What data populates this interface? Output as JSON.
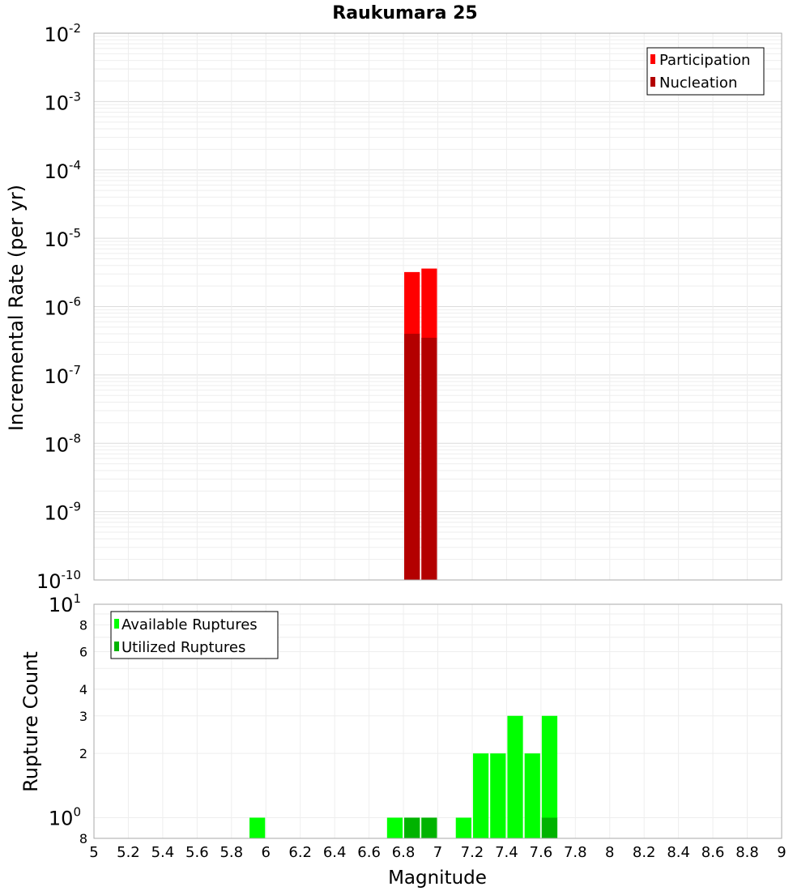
{
  "chart_data": [
    {
      "type": "bar",
      "title": "Raukumara 25",
      "xlabel": "",
      "ylabel": "Incremental Rate (per yr)",
      "y_scale": "log",
      "ylim": [
        1e-10,
        0.01
      ],
      "xlim": [
        5,
        9
      ],
      "grid": true,
      "legend_position": "top-right",
      "y_ticks": [
        {
          "base": "10",
          "exp": "-2"
        },
        {
          "base": "10",
          "exp": "-3"
        },
        {
          "base": "10",
          "exp": "-4"
        },
        {
          "base": "10",
          "exp": "-5"
        },
        {
          "base": "10",
          "exp": "-6"
        },
        {
          "base": "10",
          "exp": "-7"
        },
        {
          "base": "10",
          "exp": "-8"
        },
        {
          "base": "10",
          "exp": "-9"
        },
        {
          "base": "10",
          "exp": "-10"
        }
      ],
      "series": [
        {
          "name": "Participation",
          "color": "#ff0000",
          "x": [
            6.85,
            6.95
          ],
          "values": [
            3.2e-06,
            3.6e-06
          ]
        },
        {
          "name": "Nucleation",
          "color": "#b30000",
          "x": [
            6.85,
            6.95
          ],
          "values": [
            4e-07,
            3.5e-07
          ]
        }
      ]
    },
    {
      "type": "bar",
      "title": "",
      "xlabel": "Magnitude",
      "ylabel": "Rupture Count",
      "y_scale": "log",
      "ylim": [
        0.8,
        10
      ],
      "xlim": [
        5,
        9
      ],
      "grid": true,
      "legend_position": "top-left",
      "y_ticks": [
        {
          "base": "10",
          "exp": "1",
          "value": 10
        },
        {
          "base": "8",
          "exp": "",
          "value": 8
        },
        {
          "base": "6",
          "exp": "",
          "value": 6
        },
        {
          "base": "4",
          "exp": "",
          "value": 4
        },
        {
          "base": "3",
          "exp": "",
          "value": 3
        },
        {
          "base": "2",
          "exp": "",
          "value": 2
        },
        {
          "base": "10",
          "exp": "0",
          "value": 1
        },
        {
          "base": "8",
          "exp": "",
          "value": 0.8
        }
      ],
      "x_ticks": [
        "5",
        "5.2",
        "5.4",
        "5.6",
        "5.8",
        "6",
        "6.2",
        "6.4",
        "6.6",
        "6.8",
        "7",
        "7.2",
        "7.4",
        "7.6",
        "7.8",
        "8",
        "8.2",
        "8.4",
        "8.6",
        "8.8",
        "9"
      ],
      "series": [
        {
          "name": "Available Ruptures",
          "color": "#00ff00",
          "x": [
            5.95,
            6.75,
            6.85,
            6.95,
            7.15,
            7.25,
            7.35,
            7.45,
            7.55,
            7.65
          ],
          "values": [
            1,
            1,
            1,
            1,
            1,
            2,
            2,
            3,
            2,
            3
          ]
        },
        {
          "name": "Utilized Ruptures",
          "color": "#00b300",
          "x": [
            6.85,
            6.95,
            7.65
          ],
          "values": [
            1,
            1,
            1
          ]
        }
      ]
    }
  ]
}
